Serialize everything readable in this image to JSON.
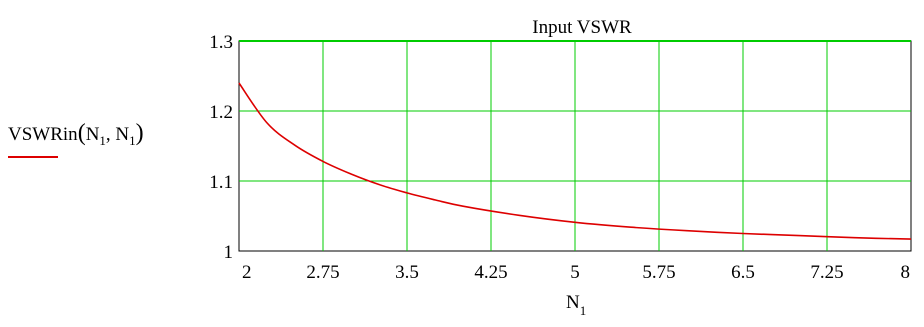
{
  "chart_data": {
    "type": "line",
    "title": "Input VSWR",
    "xlabel": "N",
    "xlabel_sub": "1",
    "ylabel_parts": {
      "fn": "VSWRin",
      "lparen": "(",
      "arg1": "N",
      "arg1_sub": "1",
      "comma": ", ",
      "arg2": "N",
      "arg2_sub": "1",
      "rparen": ")"
    },
    "xlim": [
      2,
      8
    ],
    "ylim": [
      1,
      1.3
    ],
    "x_ticks": [
      "2",
      "2.75",
      "3.5",
      "4.25",
      "5",
      "5.75",
      "6.5",
      "7.25",
      "8"
    ],
    "x_tick_values": [
      2,
      2.75,
      3.5,
      4.25,
      5,
      5.75,
      6.5,
      7.25,
      8
    ],
    "y_ticks": [
      "1",
      "1.1",
      "1.2",
      "1.3"
    ],
    "y_tick_values": [
      1,
      1.1,
      1.2,
      1.3
    ],
    "grid": true,
    "grid_color": "#00cc00",
    "legend": "left",
    "series": [
      {
        "color": "#dd0000",
        "x": [
          2,
          2.25,
          2.5,
          2.75,
          3,
          3.25,
          3.5,
          3.75,
          4,
          4.5,
          5,
          5.5,
          6,
          6.5,
          7,
          7.5,
          8
        ],
        "y": [
          1.24,
          1.183,
          1.151,
          1.128,
          1.11,
          1.095,
          1.083,
          1.073,
          1.064,
          1.051,
          1.041,
          1.034,
          1.029,
          1.025,
          1.022,
          1.019,
          1.017
        ]
      }
    ]
  }
}
